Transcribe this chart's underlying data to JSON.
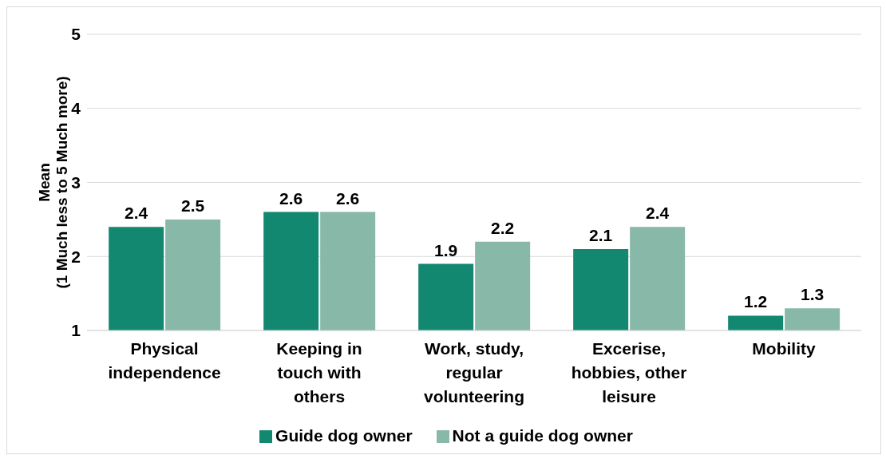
{
  "chart_data": {
    "type": "bar",
    "ylabel": "Mean\n(1 Much less to 5 Much more)",
    "categories": [
      "Physical independence",
      "Keeping in touch with others",
      "Work, study, regular volunteering",
      "Excerise, hobbies, other leisure",
      "Mobility"
    ],
    "series": [
      {
        "name": "Guide dog owner",
        "color": "#138871",
        "values": [
          2.4,
          2.6,
          1.9,
          2.1,
          1.2
        ]
      },
      {
        "name": "Not a guide dog owner",
        "color": "#88b8a8",
        "values": [
          2.5,
          2.6,
          2.2,
          2.4,
          1.3
        ]
      }
    ],
    "ylim": [
      1,
      5
    ],
    "yticks": [
      1,
      2,
      3,
      4,
      5
    ],
    "grid": "y",
    "legend": "bottom",
    "data_labels": true
  }
}
